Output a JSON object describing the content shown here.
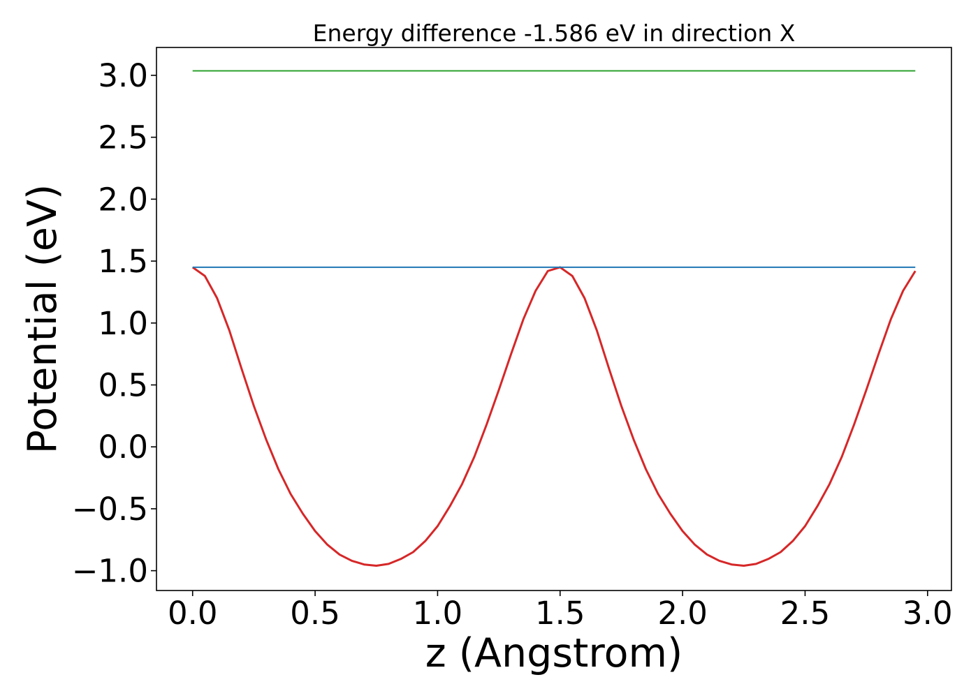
{
  "chart_data": {
    "type": "line",
    "title": "Energy difference -1.586 eV in direction X",
    "xlabel": "z (Angstrom)",
    "ylabel": "Potential (eV)",
    "xlim": [
      -0.1475,
      3.0975
    ],
    "ylim": [
      -1.16,
      3.225
    ],
    "xticks": [
      0.0,
      0.5,
      1.0,
      1.5,
      2.0,
      2.5,
      3.0
    ],
    "xtick_labels": [
      "0.0",
      "0.5",
      "1.0",
      "1.5",
      "2.0",
      "2.5",
      "3.0"
    ],
    "yticks": [
      -1.0,
      -0.5,
      0.0,
      0.5,
      1.0,
      1.5,
      2.0,
      2.5,
      3.0
    ],
    "ytick_labels": [
      "−1.0",
      "−0.5",
      "0.0",
      "0.5",
      "1.0",
      "1.5",
      "2.0",
      "2.5",
      "3.0"
    ],
    "grid": false,
    "legend": "none",
    "series": [
      {
        "color": "#d62728",
        "x": [
          0.0,
          0.05,
          0.1,
          0.15,
          0.2,
          0.25,
          0.3,
          0.35,
          0.4,
          0.45,
          0.5,
          0.55,
          0.6,
          0.65,
          0.7,
          0.75,
          0.8,
          0.85,
          0.9,
          0.95,
          1.0,
          1.05,
          1.1,
          1.15,
          1.2,
          1.25,
          1.3,
          1.35,
          1.4,
          1.45,
          1.5,
          1.55,
          1.6,
          1.65,
          1.7,
          1.75,
          1.8,
          1.85,
          1.9,
          1.95,
          2.0,
          2.05,
          2.1,
          2.15,
          2.2,
          2.25,
          2.3,
          2.35,
          2.4,
          2.45,
          2.5,
          2.55,
          2.6,
          2.65,
          2.7,
          2.75,
          2.8,
          2.85,
          2.9,
          2.95
        ],
        "y": [
          1.45,
          1.38,
          1.2,
          0.94,
          0.63,
          0.33,
          0.06,
          -0.18,
          -0.38,
          -0.54,
          -0.68,
          -0.79,
          -0.87,
          -0.92,
          -0.95,
          -0.96,
          -0.945,
          -0.905,
          -0.85,
          -0.76,
          -0.64,
          -0.48,
          -0.3,
          -0.08,
          0.18,
          0.46,
          0.75,
          1.03,
          1.26,
          1.42,
          1.45,
          1.38,
          1.2,
          0.94,
          0.63,
          0.33,
          0.06,
          -0.18,
          -0.38,
          -0.54,
          -0.68,
          -0.79,
          -0.87,
          -0.92,
          -0.95,
          -0.96,
          -0.945,
          -0.905,
          -0.85,
          -0.76,
          -0.64,
          -0.48,
          -0.3,
          -0.08,
          0.18,
          0.46,
          0.75,
          1.03,
          1.26,
          1.42
        ]
      },
      {
        "color": "#2ca02c",
        "x": [
          0.0,
          2.95
        ],
        "y": [
          3.036,
          3.036
        ]
      },
      {
        "color": "#1f77b4",
        "x": [
          0.0,
          2.95
        ],
        "y": [
          1.45,
          1.45
        ]
      }
    ]
  }
}
